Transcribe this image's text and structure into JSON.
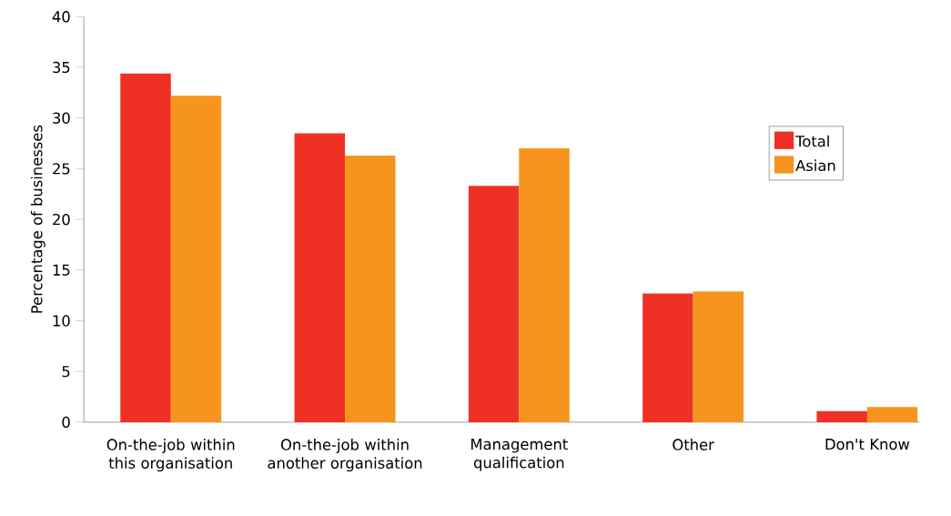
{
  "chart_data": {
    "type": "bar",
    "ylabel": "Percentage of businesses",
    "categories": [
      "On-the-job within this organisation",
      "On-the-job within another organisation",
      "Management qualification",
      "Other",
      "Don't Know"
    ],
    "series": [
      {
        "name": "Total",
        "color": "#ee3124",
        "values": [
          34.4,
          28.5,
          23.3,
          12.7,
          1.1
        ]
      },
      {
        "name": "Asian",
        "color": "#f7941d",
        "values": [
          32.2,
          26.3,
          27.0,
          12.9,
          1.5
        ]
      }
    ],
    "ylim": [
      0,
      40
    ],
    "yticks": [
      0,
      5,
      10,
      15,
      20,
      25,
      30,
      35,
      40
    ],
    "grid": false,
    "legend": "top right"
  }
}
